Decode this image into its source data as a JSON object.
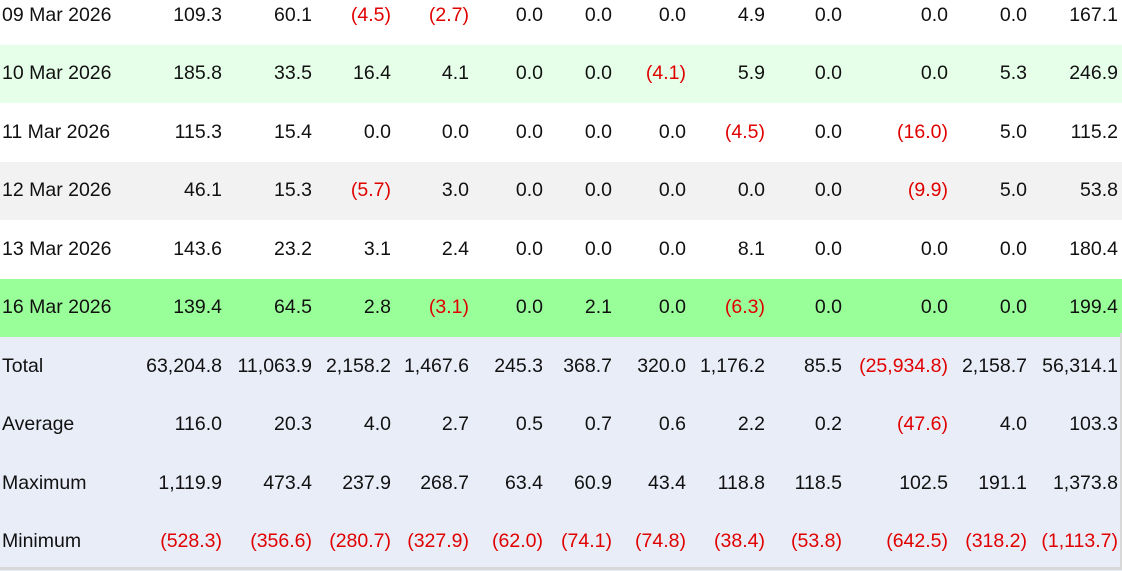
{
  "colors": {
    "negative": "#e00000",
    "highlight_light_green": "#e6ffe9",
    "highlight_green": "#99ff99",
    "alt_gray": "#f2f2f2",
    "summary_bg": "#e9edf8"
  },
  "rows": [
    {
      "label": "09 Mar 2026",
      "style": "white",
      "values": [
        "109.3",
        "60.1",
        "(4.5)",
        "(2.7)",
        "0.0",
        "0.0",
        "0.0",
        "4.9",
        "0.0",
        "0.0",
        "0.0",
        "167.1"
      ]
    },
    {
      "label": "10 Mar 2026",
      "style": "light-green",
      "values": [
        "185.8",
        "33.5",
        "16.4",
        "4.1",
        "0.0",
        "0.0",
        "(4.1)",
        "5.9",
        "0.0",
        "0.0",
        "5.3",
        "246.9"
      ]
    },
    {
      "label": "11 Mar 2026",
      "style": "white",
      "values": [
        "115.3",
        "15.4",
        "0.0",
        "0.0",
        "0.0",
        "0.0",
        "0.0",
        "(4.5)",
        "0.0",
        "(16.0)",
        "5.0",
        "115.2"
      ]
    },
    {
      "label": "12 Mar 2026",
      "style": "gray",
      "values": [
        "46.1",
        "15.3",
        "(5.7)",
        "3.0",
        "0.0",
        "0.0",
        "0.0",
        "0.0",
        "0.0",
        "(9.9)",
        "5.0",
        "53.8"
      ]
    },
    {
      "label": "13 Mar 2026",
      "style": "white",
      "values": [
        "143.6",
        "23.2",
        "3.1",
        "2.4",
        "0.0",
        "0.0",
        "0.0",
        "8.1",
        "0.0",
        "0.0",
        "0.0",
        "180.4"
      ]
    },
    {
      "label": "16 Mar 2026",
      "style": "green",
      "values": [
        "139.4",
        "64.5",
        "2.8",
        "(3.1)",
        "0.0",
        "2.1",
        "0.0",
        "(6.3)",
        "0.0",
        "0.0",
        "0.0",
        "199.4"
      ]
    }
  ],
  "summary": [
    {
      "label": "Total",
      "values": [
        "63,204.8",
        "11,063.9",
        "2,158.2",
        "1,467.6",
        "245.3",
        "368.7",
        "320.0",
        "1,176.2",
        "85.5",
        "(25,934.8)",
        "2,158.7",
        "56,314.1"
      ]
    },
    {
      "label": "Average",
      "values": [
        "116.0",
        "20.3",
        "4.0",
        "2.7",
        "0.5",
        "0.7",
        "0.6",
        "2.2",
        "0.2",
        "(47.6)",
        "4.0",
        "103.3"
      ]
    },
    {
      "label": "Maximum",
      "values": [
        "1,119.9",
        "473.4",
        "237.9",
        "268.7",
        "63.4",
        "60.9",
        "43.4",
        "118.8",
        "118.5",
        "102.5",
        "191.1",
        "1,373.8"
      ]
    },
    {
      "label": "Minimum",
      "values": [
        "(528.3)",
        "(356.6)",
        "(280.7)",
        "(327.9)",
        "(62.0)",
        "(74.1)",
        "(74.8)",
        "(38.4)",
        "(53.8)",
        "(642.5)",
        "(318.2)",
        "(1,113.7)"
      ]
    }
  ]
}
